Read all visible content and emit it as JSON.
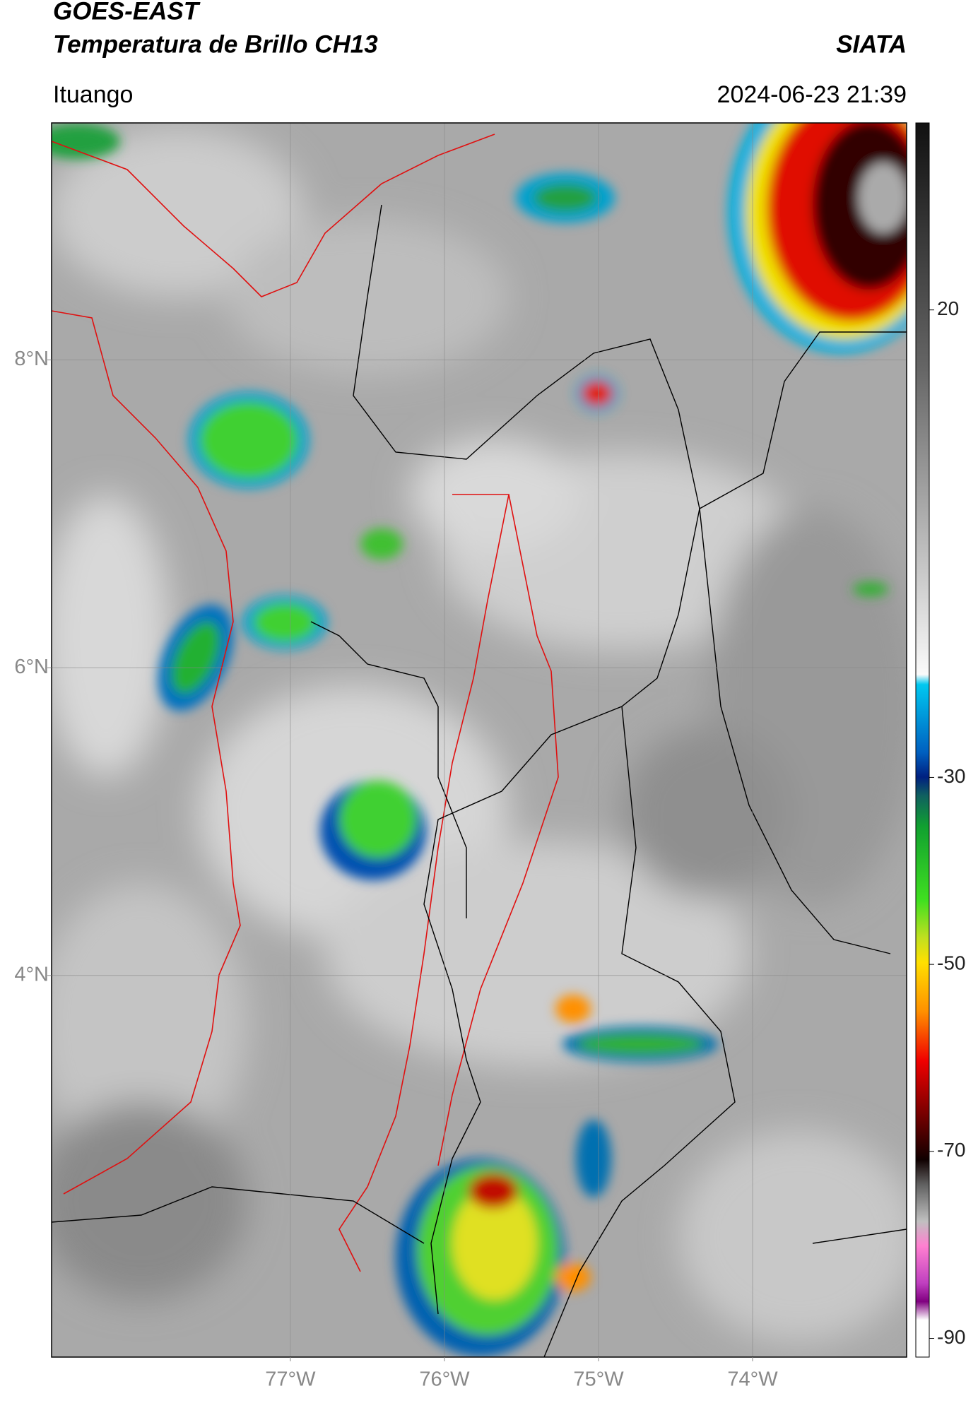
{
  "header": {
    "title": "GOES-EAST",
    "subtitle": "Temperatura de Brillo CH13",
    "source": "SIATA",
    "location": "Ituango",
    "datetime": "2024-06-23 21:39"
  },
  "map": {
    "xlim": [
      -78.55,
      -73.0
    ],
    "ylim": [
      1.52,
      9.54
    ],
    "xticks": [
      {
        "value": -77,
        "label": "77°W"
      },
      {
        "value": -76,
        "label": "76°W"
      },
      {
        "value": -75,
        "label": "75°W"
      },
      {
        "value": -74,
        "label": "74°W"
      }
    ],
    "yticks": [
      {
        "value": 8,
        "label": "8°N"
      },
      {
        "value": 6,
        "label": "6°N"
      },
      {
        "value": 4,
        "label": "4°N"
      }
    ],
    "grid": true
  },
  "colorbar": {
    "lim": [
      -92,
      40
    ],
    "ticks": [
      20,
      -30,
      -50,
      -70,
      -90
    ]
  }
}
